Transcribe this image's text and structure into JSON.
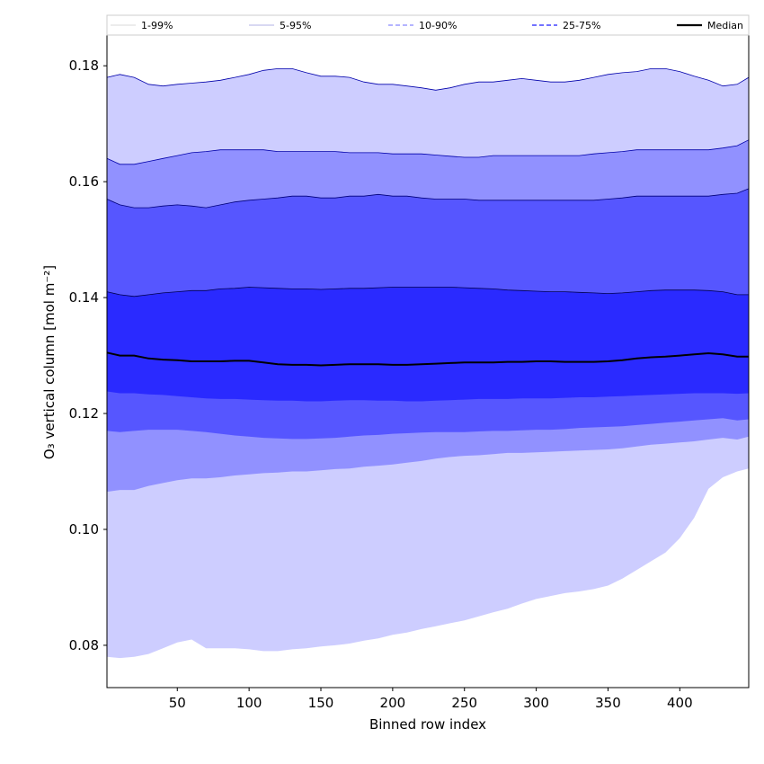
{
  "chart_data": {
    "type": "area",
    "xlabel": "Binned row index",
    "ylabel": "O₃ vertical column [mol m⁻²]",
    "xlim": [
      1,
      448
    ],
    "ylim": [
      0.0727,
      0.1853
    ],
    "xticks": [
      50,
      100,
      150,
      200,
      250,
      300,
      350,
      400
    ],
    "yticks": [
      0.08,
      0.1,
      0.12,
      0.14,
      0.16,
      0.18
    ],
    "ytick_labels": [
      "0.08",
      "0.10",
      "0.12",
      "0.14",
      "0.16",
      "0.18"
    ],
    "grid": false,
    "legend_position": "top",
    "x": [
      1,
      10,
      20,
      30,
      40,
      50,
      60,
      70,
      80,
      90,
      100,
      110,
      120,
      130,
      140,
      150,
      160,
      170,
      180,
      190,
      200,
      210,
      220,
      230,
      240,
      250,
      260,
      270,
      280,
      290,
      300,
      310,
      320,
      330,
      340,
      350,
      360,
      370,
      380,
      390,
      400,
      410,
      420,
      430,
      440,
      448
    ],
    "series": [
      {
        "name": "1-99%",
        "color": "#cdcdff",
        "line_color": "#0000aa",
        "line_style": "solid",
        "lower": [
          0.078,
          0.0778,
          0.078,
          0.0785,
          0.0795,
          0.0805,
          0.081,
          0.0795,
          0.0795,
          0.0795,
          0.0793,
          0.079,
          0.079,
          0.0793,
          0.0795,
          0.0798,
          0.08,
          0.0803,
          0.0808,
          0.0812,
          0.0818,
          0.0822,
          0.0828,
          0.0833,
          0.0838,
          0.0843,
          0.085,
          0.0857,
          0.0863,
          0.0872,
          0.088,
          0.0885,
          0.089,
          0.0893,
          0.0897,
          0.0903,
          0.0915,
          0.093,
          0.0945,
          0.096,
          0.0985,
          0.102,
          0.107,
          0.109,
          0.11,
          0.1105
        ],
        "upper": [
          0.178,
          0.1785,
          0.178,
          0.1768,
          0.1765,
          0.1768,
          0.177,
          0.1772,
          0.1775,
          0.178,
          0.1785,
          0.1792,
          0.1795,
          0.1795,
          0.1788,
          0.1782,
          0.1782,
          0.178,
          0.1772,
          0.1768,
          0.1768,
          0.1765,
          0.1762,
          0.1758,
          0.1762,
          0.1768,
          0.1772,
          0.1772,
          0.1775,
          0.1778,
          0.1775,
          0.1772,
          0.1772,
          0.1775,
          0.178,
          0.1785,
          0.1788,
          0.179,
          0.1795,
          0.1795,
          0.179,
          0.1782,
          0.1775,
          0.1765,
          0.1768,
          0.178
        ]
      },
      {
        "name": "5-95%",
        "color": "#9191ff",
        "line_color": "#0000aa",
        "line_style": "solid",
        "lower": [
          0.1065,
          0.1068,
          0.1068,
          0.1075,
          0.108,
          0.1085,
          0.1088,
          0.1088,
          0.109,
          0.1093,
          0.1095,
          0.1097,
          0.1098,
          0.11,
          0.11,
          0.1102,
          0.1104,
          0.1105,
          0.1108,
          0.111,
          0.1112,
          0.1115,
          0.1118,
          0.1122,
          0.1125,
          0.1127,
          0.1128,
          0.113,
          0.1132,
          0.1132,
          0.1133,
          0.1134,
          0.1135,
          0.1136,
          0.1137,
          0.1138,
          0.114,
          0.1143,
          0.1146,
          0.1148,
          0.115,
          0.1152,
          0.1155,
          0.1158,
          0.1155,
          0.116
        ],
        "upper": [
          0.164,
          0.163,
          0.163,
          0.1635,
          0.164,
          0.1645,
          0.165,
          0.1652,
          0.1655,
          0.1655,
          0.1655,
          0.1655,
          0.1652,
          0.1652,
          0.1652,
          0.1652,
          0.1652,
          0.165,
          0.165,
          0.165,
          0.1648,
          0.1648,
          0.1648,
          0.1646,
          0.1644,
          0.1642,
          0.1642,
          0.1645,
          0.1645,
          0.1645,
          0.1645,
          0.1645,
          0.1645,
          0.1645,
          0.1648,
          0.165,
          0.1652,
          0.1655,
          0.1655,
          0.1655,
          0.1655,
          0.1655,
          0.1655,
          0.1658,
          0.1662,
          0.1672
        ]
      },
      {
        "name": "10-90%",
        "color": "#5656ff",
        "line_color": "#00007a",
        "line_style": "dashed",
        "lower": [
          0.117,
          0.1168,
          0.117,
          0.1172,
          0.1172,
          0.1172,
          0.117,
          0.1168,
          0.1165,
          0.1162,
          0.116,
          0.1158,
          0.1157,
          0.1156,
          0.1156,
          0.1157,
          0.1158,
          0.116,
          0.1162,
          0.1163,
          0.1165,
          0.1166,
          0.1167,
          0.1168,
          0.1168,
          0.1168,
          0.1169,
          0.117,
          0.117,
          0.1171,
          0.1172,
          0.1172,
          0.1173,
          0.1175,
          0.1176,
          0.1177,
          0.1178,
          0.118,
          0.1182,
          0.1184,
          0.1186,
          0.1188,
          0.119,
          0.1192,
          0.1188,
          0.119
        ],
        "upper": [
          0.157,
          0.156,
          0.1555,
          0.1555,
          0.1558,
          0.156,
          0.1558,
          0.1555,
          0.156,
          0.1565,
          0.1568,
          0.157,
          0.1572,
          0.1575,
          0.1575,
          0.1572,
          0.1572,
          0.1575,
          0.1575,
          0.1578,
          0.1575,
          0.1575,
          0.1572,
          0.157,
          0.157,
          0.157,
          0.1568,
          0.1568,
          0.1568,
          0.1568,
          0.1568,
          0.1568,
          0.1568,
          0.1568,
          0.1568,
          0.157,
          0.1572,
          0.1575,
          0.1575,
          0.1575,
          0.1575,
          0.1575,
          0.1575,
          0.1578,
          0.158,
          0.1588
        ]
      },
      {
        "name": "25-75%",
        "color": "#2a2aff",
        "line_color": "#000050",
        "line_style": "dashed",
        "lower": [
          0.1238,
          0.1235,
          0.1235,
          0.1233,
          0.1232,
          0.123,
          0.1228,
          0.1226,
          0.1225,
          0.1225,
          0.1224,
          0.1223,
          0.1222,
          0.1222,
          0.1221,
          0.1221,
          0.1222,
          0.1223,
          0.1223,
          0.1222,
          0.1222,
          0.1221,
          0.1221,
          0.1222,
          0.1223,
          0.1224,
          0.1225,
          0.1225,
          0.1225,
          0.1226,
          0.1226,
          0.1226,
          0.1227,
          0.1228,
          0.1228,
          0.1229,
          0.123,
          0.1231,
          0.1232,
          0.1233,
          0.1234,
          0.1235,
          0.1235,
          0.1235,
          0.1234,
          0.1235
        ],
        "upper": [
          0.141,
          0.1405,
          0.1402,
          0.1405,
          0.1408,
          0.141,
          0.1412,
          0.1412,
          0.1415,
          0.1416,
          0.1418,
          0.1417,
          0.1416,
          0.1415,
          0.1415,
          0.1414,
          0.1415,
          0.1416,
          0.1416,
          0.1417,
          0.1418,
          0.1418,
          0.1418,
          0.1418,
          0.1418,
          0.1417,
          0.1416,
          0.1415,
          0.1413,
          0.1412,
          0.1411,
          0.141,
          0.141,
          0.1409,
          0.1408,
          0.1407,
          0.1408,
          0.141,
          0.1412,
          0.1413,
          0.1413,
          0.1413,
          0.1412,
          0.141,
          0.1405,
          0.1405
        ]
      },
      {
        "name": "Median",
        "color": "#000000",
        "line_style": "solid",
        "values": [
          0.1305,
          0.13,
          0.13,
          0.1295,
          0.1293,
          0.1292,
          0.129,
          0.129,
          0.129,
          0.1291,
          0.1291,
          0.1288,
          0.1285,
          0.1284,
          0.1284,
          0.1283,
          0.1284,
          0.1285,
          0.1285,
          0.1285,
          0.1284,
          0.1284,
          0.1285,
          0.1286,
          0.1287,
          0.1288,
          0.1288,
          0.1288,
          0.1289,
          0.1289,
          0.129,
          0.129,
          0.1289,
          0.1289,
          0.1289,
          0.129,
          0.1292,
          0.1295,
          0.1297,
          0.1298,
          0.13,
          0.1302,
          0.1304,
          0.1302,
          0.1298,
          0.1298
        ]
      }
    ]
  }
}
